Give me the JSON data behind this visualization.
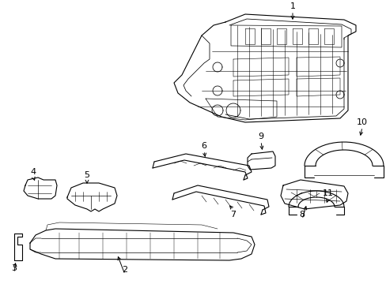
{
  "background_color": "#ffffff",
  "line_color": "#000000",
  "line_width": 0.8,
  "label_fontsize": 8,
  "figsize": [
    4.89,
    3.6
  ],
  "dpi": 100
}
